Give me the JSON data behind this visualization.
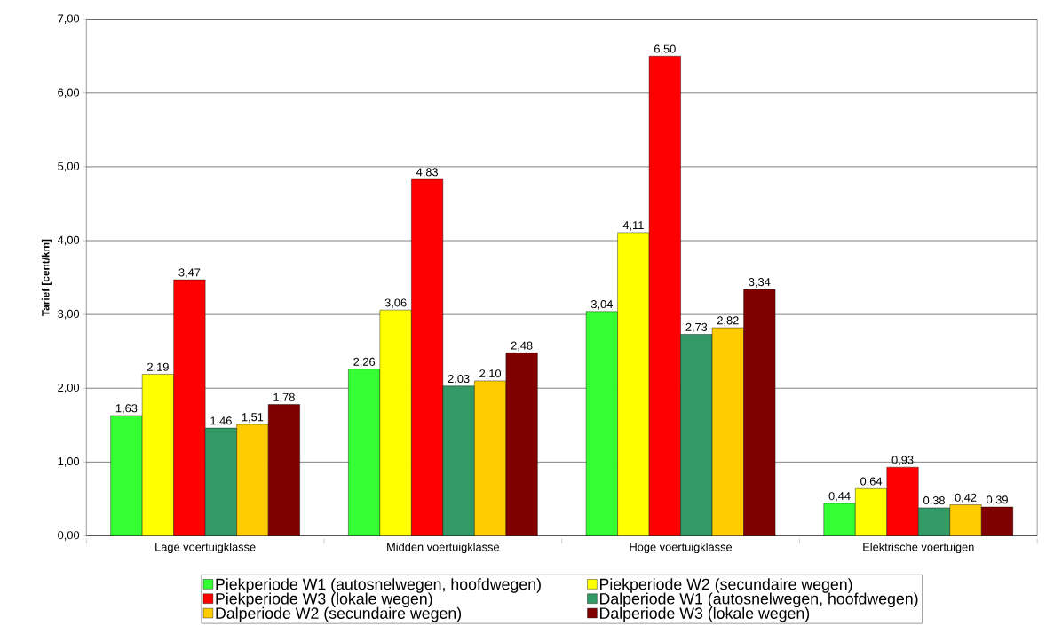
{
  "chart_data": {
    "type": "bar",
    "ylabel": "Tarief [cent/km]",
    "categories": [
      "Lage voertuigklasse",
      "Midden voertuigklasse",
      "Hoge voertuigklasse",
      "Elektrische voertuigen"
    ],
    "series": [
      {
        "name": "Piekperiode W1 (autosnelwegen, hoofdwegen)",
        "color": "#33ff33",
        "values": [
          1.63,
          2.26,
          3.04,
          0.44
        ],
        "value_labels": [
          "1,63",
          "2,26",
          "3,04",
          "0,44"
        ]
      },
      {
        "name": "Piekperiode W2 (secundaire wegen)",
        "color": "#ffff00",
        "values": [
          2.19,
          3.06,
          4.11,
          0.64
        ],
        "value_labels": [
          "2,19",
          "3,06",
          "4,11",
          "0,64"
        ]
      },
      {
        "name": "Piekperiode W3 (lokale wegen)",
        "color": "#ff0000",
        "values": [
          3.47,
          4.83,
          6.5,
          0.93
        ],
        "value_labels": [
          "3,47",
          "4,83",
          "6,50",
          "0,93"
        ]
      },
      {
        "name": "Dalperiode W1 (autosnelwegen, hoofdwegen)",
        "color": "#339966",
        "values": [
          1.46,
          2.03,
          2.73,
          0.38
        ],
        "value_labels": [
          "1,46",
          "2,03",
          "2,73",
          "0,38"
        ]
      },
      {
        "name": "Dalperiode W2 (secundaire wegen)",
        "color": "#ffcc00",
        "values": [
          1.51,
          2.1,
          2.82,
          0.42
        ],
        "value_labels": [
          "1,51",
          "2,10",
          "2,82",
          "0,42"
        ]
      },
      {
        "name": "Dalperiode W3 (lokale wegen)",
        "color": "#800000",
        "values": [
          1.78,
          2.48,
          3.34,
          0.39
        ],
        "value_labels": [
          "1,78",
          "2,48",
          "3,34",
          "0,39"
        ]
      }
    ],
    "ylim": [
      0,
      7
    ],
    "yticks": [
      {
        "value": 0,
        "label": "0,00"
      },
      {
        "value": 1,
        "label": "1,00"
      },
      {
        "value": 2,
        "label": "2,00"
      },
      {
        "value": 3,
        "label": "3,00"
      },
      {
        "value": 4,
        "label": "4,00"
      },
      {
        "value": 5,
        "label": "5,00"
      },
      {
        "value": 6,
        "label": "6,00"
      },
      {
        "value": 7,
        "label": "7,00"
      }
    ],
    "grid": "y",
    "legend": "bottom"
  }
}
